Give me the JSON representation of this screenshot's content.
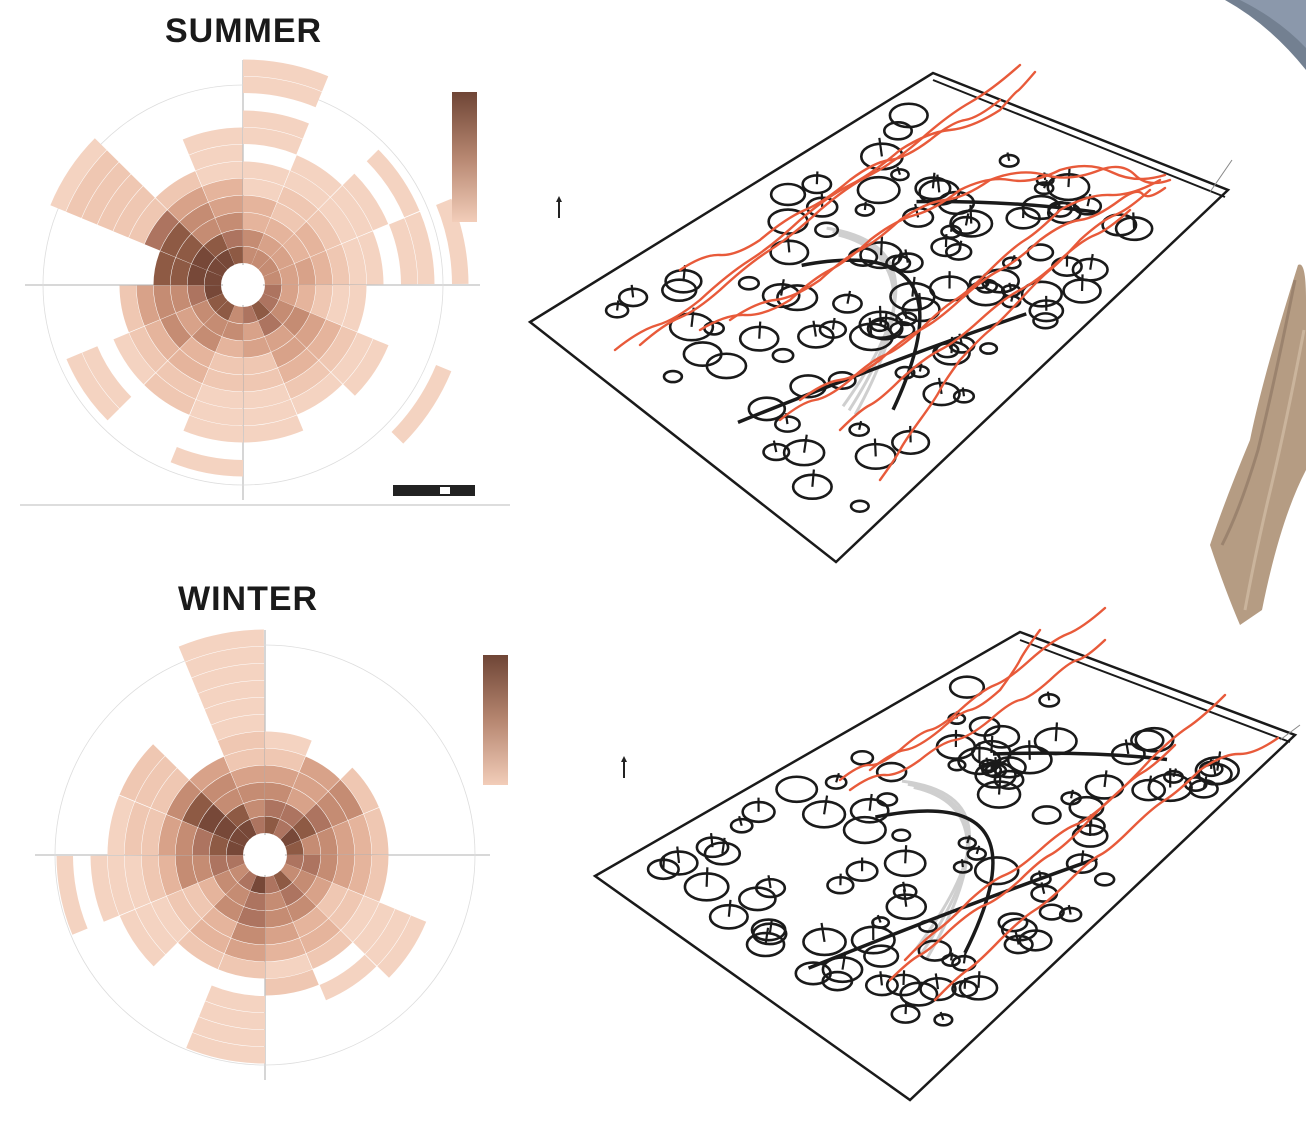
{
  "summer": {
    "title": "SUMMER"
  },
  "winter": {
    "title": "WINTER"
  },
  "colors": {
    "rose_light": "#f2cdb9",
    "rose_mid": "#d6a58c",
    "rose_dark": "#8e5a44",
    "wind_lines": "#e85a3a",
    "plan_stroke": "#1a1a1a",
    "fabric": "#b39a80"
  }
}
